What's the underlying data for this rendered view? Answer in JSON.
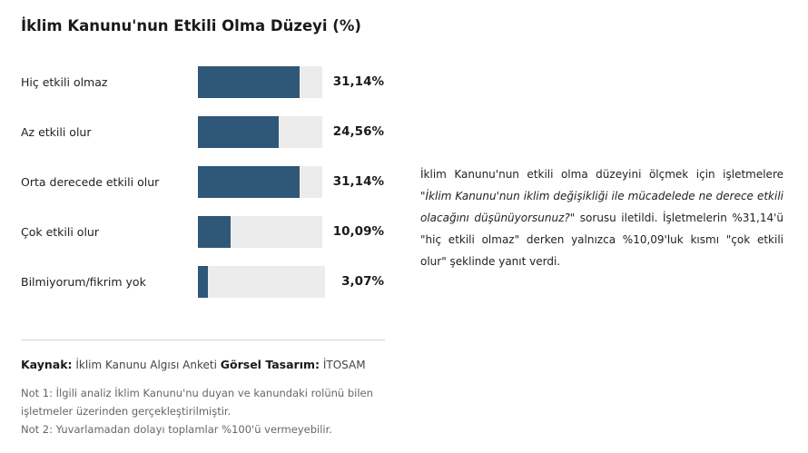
{
  "title": "İklim Kanunu'nun Etkili Olma Düzeyi (%)",
  "chart_data": {
    "type": "bar",
    "orientation": "horizontal",
    "title": "İklim Kanunu'nun Etkili Olma Düzeyi (%)",
    "categories": [
      "Hiç etkili olmaz",
      "Az etkili olur",
      "Orta derecede etkili olur",
      "Çok etkili olur",
      "Bilmiyorum/fikrim yok"
    ],
    "values": [
      31.14,
      24.56,
      31.14,
      10.09,
      3.07
    ],
    "value_labels": [
      "31,14%",
      "24,56%",
      "31,14%",
      "10,09%",
      "3,07%"
    ],
    "xlim": [
      0,
      38
    ],
    "grid": false,
    "legend": "none"
  },
  "source": {
    "label": "Kaynak:",
    "value": "İklim Kanunu Algısı Anketi",
    "design_label": "Görsel Tasarım:",
    "design_value": "İTOSAM"
  },
  "notes": [
    "Not 1: İlgili analiz İklim Kanunu'nu duyan ve kanundaki rolünü bilen işletmeler üzerinden gerçekleştirilmiştir.",
    "Not 2: Yuvarlamadan dolayı toplamlar %100'ü vermeyebilir."
  ],
  "description": {
    "part1": "İklim Kanunu'nun etkili olma düzeyini ölçmek için işletmelere \"",
    "question": "İklim Kanunu'nun iklim değişikliği ile mücadelede ne derece etkili olacağını düşünüyorsunuz?",
    "part2": "\" sorusu iletildi. İşletmelerin %31,14'ü \"hiç etkili olmaz\" derken yalnızca %10,09'luk kısmı \"çok etkili olur\" şeklinde yanıt verdi."
  },
  "colors": {
    "bar": "#2e5778",
    "track": "#ececec"
  }
}
